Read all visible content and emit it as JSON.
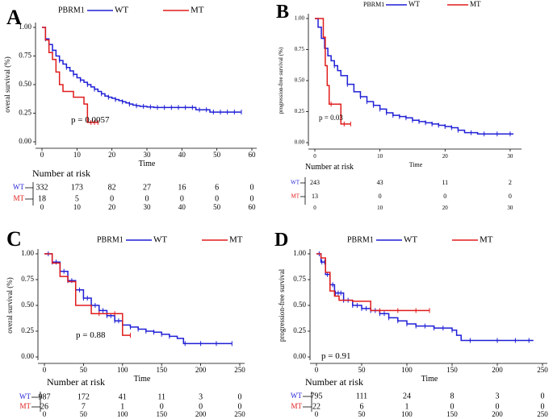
{
  "colors": {
    "wt": "#1f1fd6",
    "mt": "#e01b1b",
    "axis": "#000000"
  },
  "chart_data": [
    {
      "panel": "A",
      "type": "line",
      "legend_title": "PBRM1",
      "legend": [
        "WT",
        "MT"
      ],
      "ylabel": "overal survival (%)",
      "xlabel": "Time",
      "xlim": [
        0,
        60
      ],
      "ylim": [
        0,
        1
      ],
      "xticks": [
        "0",
        "10",
        "20",
        "30",
        "40",
        "50",
        "60"
      ],
      "yticks": [
        "0.00",
        "0.25",
        "0.50",
        "0.75",
        "1.00"
      ],
      "pvalue": "p = 0.0057",
      "risk_title": "Number at risk",
      "risk_groups": [
        "WT",
        "MT"
      ],
      "risk_times": [
        0,
        10,
        20,
        30,
        40,
        50,
        60
      ],
      "risk_rows": [
        [
          "332",
          "173",
          "82",
          "27",
          "16",
          "6",
          "0"
        ],
        [
          "18",
          "5",
          "0",
          "0",
          "0",
          "0",
          "0"
        ]
      ],
      "series": [
        {
          "name": "WT",
          "x": [
            0,
            1,
            2,
            3,
            4,
            5,
            6,
            7,
            8,
            9,
            10,
            11,
            12,
            13,
            14,
            15,
            16,
            17,
            18,
            19,
            20,
            21,
            22,
            23,
            24,
            25,
            26,
            27,
            28,
            30,
            32,
            34,
            36,
            38,
            40,
            42,
            44,
            46,
            48,
            50,
            52,
            54,
            57
          ],
          "y": [
            1.0,
            0.9,
            0.85,
            0.8,
            0.75,
            0.71,
            0.68,
            0.65,
            0.62,
            0.59,
            0.56,
            0.54,
            0.52,
            0.5,
            0.48,
            0.46,
            0.44,
            0.42,
            0.4,
            0.39,
            0.38,
            0.37,
            0.36,
            0.35,
            0.34,
            0.33,
            0.32,
            0.315,
            0.31,
            0.305,
            0.3,
            0.3,
            0.3,
            0.3,
            0.3,
            0.3,
            0.28,
            0.28,
            0.26,
            0.26,
            0.26,
            0.26,
            0.26
          ],
          "censor_x": [
            1,
            3,
            5,
            7,
            9,
            11,
            13,
            15,
            17,
            19,
            21,
            23,
            25,
            27,
            29,
            31,
            33,
            35,
            37,
            39,
            41,
            43,
            45,
            47,
            49,
            51,
            53,
            55,
            57
          ]
        },
        {
          "name": "MT",
          "x": [
            0,
            1,
            2,
            3,
            4,
            5,
            6,
            9,
            12,
            13,
            15,
            16
          ],
          "y": [
            1.0,
            0.89,
            0.78,
            0.72,
            0.61,
            0.5,
            0.44,
            0.39,
            0.33,
            0.17,
            0.17,
            0.17
          ],
          "censor_x": [
            14,
            15,
            16
          ]
        }
      ]
    },
    {
      "panel": "B",
      "type": "line",
      "legend_title": "PBRM1",
      "legend": [
        "WT",
        "MT"
      ],
      "ylabel": "progression-free survival (%)",
      "xlabel": "Time",
      "xlim": [
        0,
        31
      ],
      "ylim": [
        0,
        1
      ],
      "xticks": [
        "0",
        "10",
        "20",
        "30"
      ],
      "yticks": [
        "0.00",
        "0.25",
        "0.50",
        "0.75",
        "1.00"
      ],
      "pvalue": "p = 0.03",
      "risk_title": "Number at risk",
      "risk_groups": [
        "WT",
        "MT"
      ],
      "risk_times": [
        0,
        10,
        20,
        30
      ],
      "risk_rows": [
        [
          "243",
          "43",
          "11",
          "2"
        ],
        [
          "13",
          "0",
          "0",
          "0"
        ]
      ],
      "series": [
        {
          "name": "WT",
          "x": [
            0,
            0.5,
            1,
            1.5,
            2,
            2.5,
            3,
            3.5,
            4,
            5,
            6,
            7,
            8,
            9,
            10,
            11,
            12,
            13,
            14,
            15,
            16,
            17,
            18,
            19,
            20,
            21,
            22,
            23,
            24,
            25,
            26,
            27,
            28,
            29,
            30,
            30.5
          ],
          "y": [
            1.0,
            0.93,
            0.84,
            0.76,
            0.7,
            0.66,
            0.62,
            0.58,
            0.54,
            0.47,
            0.41,
            0.37,
            0.33,
            0.3,
            0.27,
            0.24,
            0.22,
            0.21,
            0.2,
            0.18,
            0.17,
            0.16,
            0.15,
            0.14,
            0.13,
            0.12,
            0.1,
            0.08,
            0.08,
            0.07,
            0.07,
            0.07,
            0.07,
            0.07,
            0.07,
            0.07
          ],
          "censor_x": [
            3,
            5,
            7,
            8,
            9,
            10,
            11,
            12,
            13,
            14,
            15,
            16,
            17,
            18,
            19,
            20,
            21,
            22,
            24,
            26,
            28,
            30
          ]
        },
        {
          "name": "MT",
          "x": [
            0,
            1.3,
            1.6,
            1.9,
            2.2,
            3,
            4,
            5.5
          ],
          "y": [
            1.0,
            0.85,
            0.62,
            0.46,
            0.31,
            0.31,
            0.15,
            0.15
          ],
          "censor_x": [
            2.5,
            4.5,
            5.5
          ]
        }
      ]
    },
    {
      "panel": "C",
      "type": "line",
      "legend_title": "PBRM1",
      "legend": [
        "WT",
        "MT"
      ],
      "ylabel": "overal survival (%)",
      "xlabel": "Time",
      "xlim": [
        0,
        250
      ],
      "ylim": [
        0,
        1
      ],
      "xticks": [
        "0",
        "50",
        "100",
        "150",
        "200",
        "250"
      ],
      "yticks": [
        "0.00",
        "0.25",
        "0.50",
        "0.75",
        "1.00"
      ],
      "pvalue": "p = 0.88",
      "risk_title": "Number at risk",
      "risk_groups": [
        "WT",
        "MT"
      ],
      "risk_times": [
        0,
        50,
        100,
        150,
        200,
        250
      ],
      "risk_rows": [
        [
          "987",
          "172",
          "41",
          "11",
          "3",
          "0"
        ],
        [
          "26",
          "7",
          "1",
          "0",
          "0",
          "0"
        ]
      ],
      "series": [
        {
          "name": "WT",
          "x": [
            0,
            10,
            20,
            30,
            40,
            50,
            60,
            70,
            80,
            90,
            100,
            110,
            120,
            130,
            140,
            150,
            160,
            170,
            178,
            190,
            200,
            210,
            220,
            230,
            240
          ],
          "y": [
            1.0,
            0.92,
            0.83,
            0.74,
            0.65,
            0.57,
            0.5,
            0.45,
            0.4,
            0.35,
            0.31,
            0.29,
            0.27,
            0.25,
            0.24,
            0.22,
            0.2,
            0.18,
            0.13,
            0.13,
            0.13,
            0.13,
            0.13,
            0.13,
            0.13
          ],
          "censor_x": [
            5,
            10,
            15,
            20,
            25,
            30,
            35,
            40,
            45,
            50,
            55,
            60,
            65,
            70,
            75,
            80,
            85,
            90,
            95,
            100,
            110,
            120,
            130,
            140,
            150,
            160,
            180,
            200,
            220,
            240
          ]
        },
        {
          "name": "MT",
          "x": [
            0,
            10,
            20,
            30,
            40,
            50,
            60,
            70,
            90,
            100,
            110
          ],
          "y": [
            1.0,
            0.91,
            0.78,
            0.73,
            0.5,
            0.5,
            0.42,
            0.42,
            0.42,
            0.21,
            0.21
          ],
          "censor_x": [
            70,
            90,
            110
          ]
        }
      ]
    },
    {
      "panel": "D",
      "type": "line",
      "legend_title": "PBRM1",
      "legend": [
        "WT",
        "MT"
      ],
      "ylabel": "progression-free survival",
      "xlabel": "Time",
      "xlim": [
        0,
        250
      ],
      "ylim": [
        0,
        1
      ],
      "xticks": [
        "0",
        "50",
        "100",
        "150",
        "200",
        "250"
      ],
      "yticks": [
        "0.00",
        "0.25",
        "0.50",
        "0.75",
        "1.00"
      ],
      "pvalue": "p = 0.91",
      "risk_title": "Number at risk",
      "risk_groups": [
        "WT",
        "MT"
      ],
      "risk_times": [
        0,
        50,
        100,
        150,
        200,
        250
      ],
      "risk_rows": [
        [
          "795",
          "111",
          "24",
          "8",
          "3",
          "0"
        ],
        [
          "22",
          "6",
          "1",
          "0",
          "0",
          "0"
        ]
      ],
      "series": [
        {
          "name": "WT",
          "x": [
            0,
            5,
            10,
            15,
            20,
            30,
            40,
            50,
            60,
            70,
            80,
            90,
            100,
            110,
            120,
            130,
            140,
            150,
            155,
            160,
            170,
            180,
            200,
            220,
            240
          ],
          "y": [
            1.0,
            0.92,
            0.8,
            0.7,
            0.62,
            0.55,
            0.5,
            0.47,
            0.45,
            0.42,
            0.38,
            0.35,
            0.32,
            0.3,
            0.3,
            0.28,
            0.28,
            0.26,
            0.21,
            0.16,
            0.16,
            0.16,
            0.16,
            0.16,
            0.16
          ],
          "censor_x": [
            3,
            6,
            9,
            12,
            15,
            18,
            21,
            24,
            27,
            30,
            35,
            40,
            45,
            50,
            55,
            60,
            65,
            70,
            75,
            80,
            90,
            100,
            110,
            120,
            130,
            140,
            150,
            170,
            200,
            220,
            235
          ]
        },
        {
          "name": "MT",
          "x": [
            0,
            5,
            10,
            15,
            20,
            25,
            40,
            60,
            80,
            100,
            125
          ],
          "y": [
            1.0,
            0.96,
            0.82,
            0.64,
            0.59,
            0.55,
            0.54,
            0.45,
            0.45,
            0.45,
            0.45
          ],
          "censor_x": [
            70,
            90,
            110,
            125
          ]
        }
      ]
    }
  ]
}
